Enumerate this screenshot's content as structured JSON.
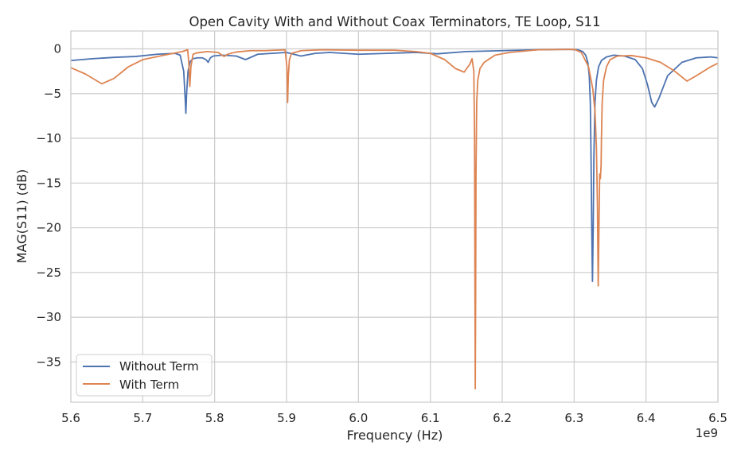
{
  "chart_data": {
    "type": "line",
    "title": "Open Cavity With and Without Coax Terminators, TE Loop, S11",
    "xlabel": "Frequency (Hz)",
    "ylabel": "MAG(S11) (dB)",
    "x_offset_label": "1e9",
    "xlim": [
      5.6,
      6.5
    ],
    "ylim": [
      -39.5,
      2
    ],
    "x_ticks": [
      5.6,
      5.7,
      5.8,
      5.9,
      6.0,
      6.1,
      6.2,
      6.3,
      6.4,
      6.5
    ],
    "x_tick_labels": [
      "5.6",
      "5.7",
      "5.8",
      "5.9",
      "6.0",
      "6.1",
      "6.2",
      "6.3",
      "6.4",
      "6.5"
    ],
    "y_ticks": [
      0,
      -5,
      -10,
      -15,
      -20,
      -25,
      -30,
      -35
    ],
    "y_tick_labels": [
      "0",
      "−5",
      "−10",
      "−15",
      "−20",
      "−25",
      "−30",
      "−35"
    ],
    "grid": true,
    "legend_position": "bottom-left",
    "series": [
      {
        "name": "Without Term",
        "color": "#4c72b0",
        "x": [
          5.6,
          5.63,
          5.66,
          5.69,
          5.72,
          5.745,
          5.752,
          5.757,
          5.759,
          5.76,
          5.761,
          5.763,
          5.766,
          5.77,
          5.776,
          5.783,
          5.788,
          5.791,
          5.794,
          5.798,
          5.81,
          5.83,
          5.843,
          5.86,
          5.88,
          5.9,
          5.91,
          5.92,
          5.94,
          5.96,
          6.0,
          6.04,
          6.08,
          6.11,
          6.15,
          6.2,
          6.25,
          6.29,
          6.305,
          6.312,
          6.316,
          6.319,
          6.321,
          6.3225,
          6.3235,
          6.3245,
          6.3255,
          6.3265,
          6.3275,
          6.329,
          6.331,
          6.334,
          6.338,
          6.345,
          6.355,
          6.37,
          6.385,
          6.395,
          6.402,
          6.408,
          6.412,
          6.418,
          6.43,
          6.45,
          6.47,
          6.49,
          6.5
        ],
        "y": [
          -1.3,
          -1.1,
          -0.95,
          -0.85,
          -0.6,
          -0.5,
          -0.7,
          -2.5,
          -5.5,
          -7.2,
          -5.0,
          -2.5,
          -1.4,
          -1.1,
          -1.0,
          -1.0,
          -1.2,
          -1.5,
          -1.0,
          -0.8,
          -0.7,
          -0.8,
          -1.2,
          -0.6,
          -0.5,
          -0.4,
          -0.6,
          -0.8,
          -0.5,
          -0.4,
          -0.6,
          -0.5,
          -0.4,
          -0.55,
          -0.3,
          -0.2,
          -0.1,
          -0.05,
          -0.1,
          -0.3,
          -0.7,
          -1.5,
          -3.0,
          -6.0,
          -12.0,
          -20.0,
          -26.0,
          -20.0,
          -12.0,
          -6.0,
          -3.5,
          -2.0,
          -1.3,
          -0.9,
          -0.7,
          -0.8,
          -1.2,
          -2.2,
          -4.0,
          -6.0,
          -6.5,
          -5.5,
          -3.0,
          -1.5,
          -1.0,
          -0.9,
          -1.0
        ]
      },
      {
        "name": "With Term",
        "color": "#dd8452",
        "x": [
          5.6,
          5.62,
          5.643,
          5.66,
          5.68,
          5.7,
          5.73,
          5.755,
          5.7625,
          5.764,
          5.7655,
          5.767,
          5.77,
          5.775,
          5.79,
          5.805,
          5.813,
          5.818,
          5.83,
          5.85,
          5.87,
          5.898,
          5.9005,
          5.9015,
          5.9025,
          5.904,
          5.907,
          5.92,
          5.95,
          6.0,
          6.05,
          6.08,
          6.1,
          6.12,
          6.135,
          6.147,
          6.155,
          6.158,
          6.1605,
          6.1615,
          6.162,
          6.1625,
          6.163,
          6.1635,
          6.1645,
          6.166,
          6.169,
          6.175,
          6.19,
          6.21,
          6.25,
          6.3,
          6.31,
          6.32,
          6.326,
          6.329,
          6.331,
          6.3325,
          6.3335,
          6.3345,
          6.3355,
          6.3365,
          6.3375,
          6.338,
          6.3385,
          6.339,
          6.341,
          6.345,
          6.35,
          6.36,
          6.38,
          6.4,
          6.42,
          6.44,
          6.457,
          6.47,
          6.49,
          6.5
        ],
        "y": [
          -2.1,
          -2.8,
          -3.9,
          -3.3,
          -2.0,
          -1.2,
          -0.7,
          -0.3,
          -0.1,
          -1.5,
          -4.2,
          -2.0,
          -0.6,
          -0.45,
          -0.3,
          -0.4,
          -0.85,
          -0.6,
          -0.35,
          -0.2,
          -0.2,
          -0.1,
          -2.0,
          -6.0,
          -3.0,
          -1.2,
          -0.5,
          -0.2,
          -0.1,
          -0.15,
          -0.15,
          -0.3,
          -0.5,
          -1.2,
          -2.2,
          -2.6,
          -1.7,
          -1.1,
          -2.5,
          -10.0,
          -25.0,
          -38.0,
          -28.0,
          -14.0,
          -6.0,
          -3.5,
          -2.2,
          -1.5,
          -0.7,
          -0.4,
          -0.1,
          -0.05,
          -0.4,
          -2.0,
          -4.5,
          -7.0,
          -11.0,
          -18.0,
          -26.5,
          -20.0,
          -14.0,
          -14.5,
          -13.0,
          -10.0,
          -8.0,
          -6.0,
          -3.5,
          -2.0,
          -1.2,
          -0.8,
          -0.75,
          -1.0,
          -1.5,
          -2.5,
          -3.6,
          -3.0,
          -2.0,
          -1.6
        ]
      }
    ]
  }
}
